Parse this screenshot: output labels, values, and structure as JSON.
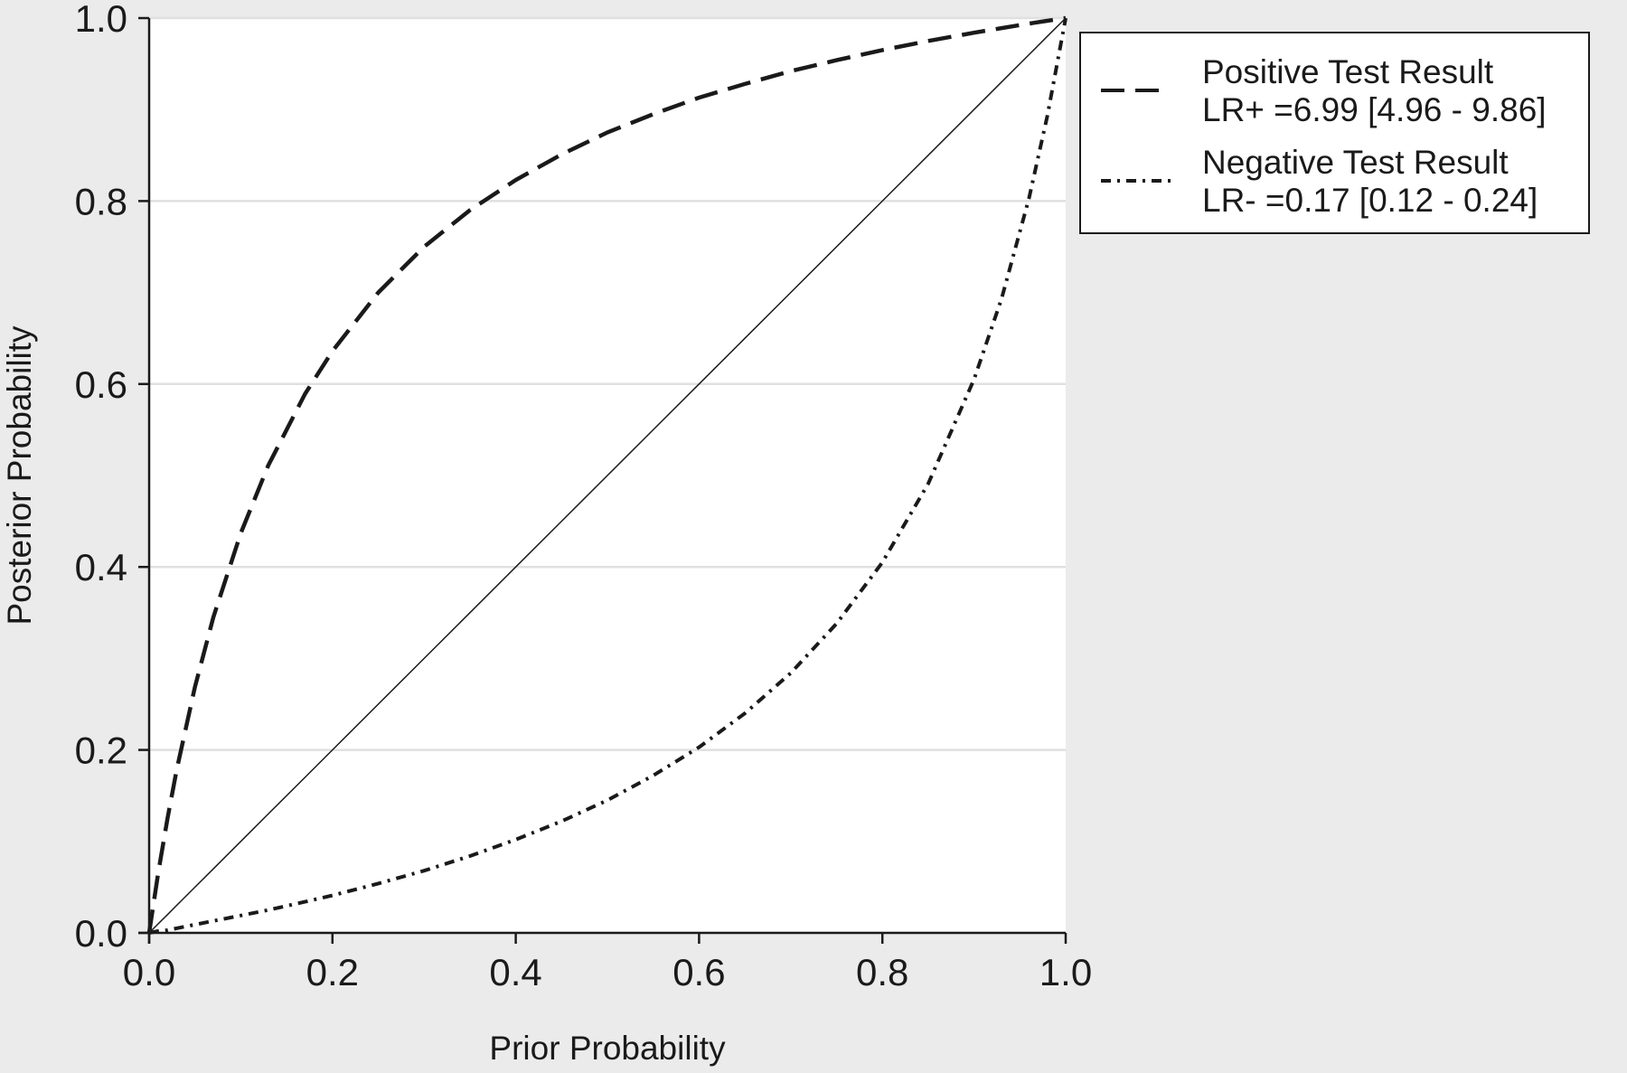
{
  "chart_data": {
    "type": "line",
    "xlabel": "Prior Probability",
    "ylabel": "Posterior Probability",
    "xlim": [
      0.0,
      1.0
    ],
    "ylim": [
      0.0,
      1.0
    ],
    "xticks": [
      "0.0",
      "0.2",
      "0.4",
      "0.6",
      "0.8",
      "1.0"
    ],
    "yticks": [
      "0.0",
      "0.2",
      "0.4",
      "0.6",
      "0.8",
      "1.0"
    ],
    "grid": "horizontal",
    "legend_position": "top-right, outside plot",
    "colors": {
      "page_background": "#ebebeb",
      "plot_background": "#ffffff",
      "gridline": "#e0e0e0",
      "line": "#1a1a1a"
    },
    "x": [
      0.0,
      0.01,
      0.02,
      0.03,
      0.05,
      0.07,
      0.1,
      0.13,
      0.17,
      0.2,
      0.25,
      0.3,
      0.35,
      0.4,
      0.45,
      0.5,
      0.55,
      0.6,
      0.65,
      0.7,
      0.75,
      0.8,
      0.85,
      0.9,
      0.93,
      0.96,
      0.98,
      1.0
    ],
    "series": [
      {
        "name": "Positive Test Result",
        "legend_detail": "LR+ =6.99 [4.96 - 9.86]",
        "line_style": "dashed",
        "values": [
          0.0,
          0.066,
          0.125,
          0.178,
          0.269,
          0.345,
          0.437,
          0.511,
          0.589,
          0.636,
          0.7,
          0.75,
          0.79,
          0.823,
          0.851,
          0.875,
          0.895,
          0.913,
          0.928,
          0.942,
          0.954,
          0.965,
          0.975,
          0.984,
          0.989,
          0.994,
          0.997,
          1.0
        ]
      },
      {
        "name": "Negative Test Result",
        "legend_detail": "LR- =0.17 [0.12 - 0.24]",
        "line_style": "dash-dot",
        "values": [
          0.0,
          0.002,
          0.003,
          0.005,
          0.009,
          0.013,
          0.019,
          0.025,
          0.034,
          0.041,
          0.054,
          0.068,
          0.084,
          0.102,
          0.122,
          0.145,
          0.172,
          0.203,
          0.24,
          0.284,
          0.338,
          0.405,
          0.491,
          0.605,
          0.693,
          0.803,
          0.893,
          1.0
        ]
      },
      {
        "name": "",
        "line_style": "solid-thin",
        "values": [
          0.0,
          0.01,
          0.02,
          0.03,
          0.05,
          0.07,
          0.1,
          0.13,
          0.17,
          0.2,
          0.25,
          0.3,
          0.35,
          0.4,
          0.45,
          0.5,
          0.55,
          0.6,
          0.65,
          0.7,
          0.75,
          0.8,
          0.85,
          0.9,
          0.93,
          0.96,
          0.98,
          1.0
        ]
      }
    ]
  }
}
